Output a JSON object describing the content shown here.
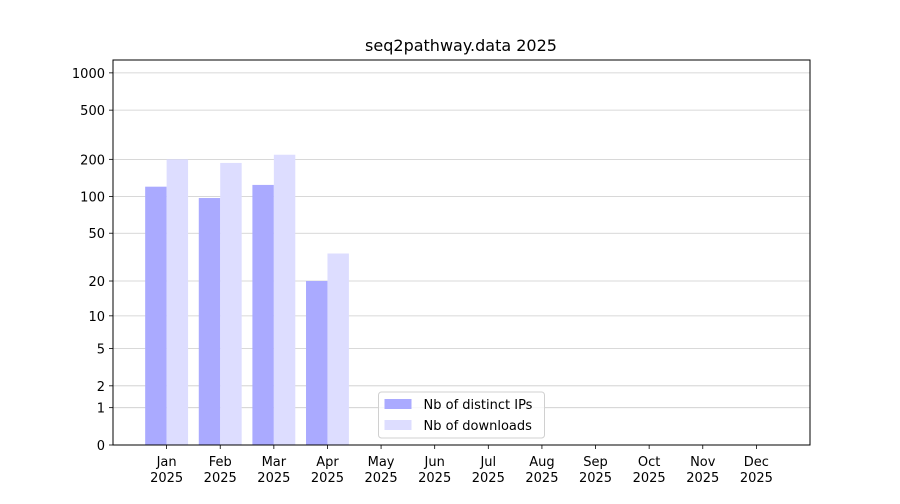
{
  "chart_data": {
    "type": "bar",
    "title": "seq2pathway.data 2025",
    "categories": [
      "Jan\n2025",
      "Feb\n2025",
      "Mar\n2025",
      "Apr\n2025",
      "May\n2025",
      "Jun\n2025",
      "Jul\n2025",
      "Aug\n2025",
      "Sep\n2025",
      "Oct\n2025",
      "Nov\n2025",
      "Dec\n2025"
    ],
    "series": [
      {
        "name": "Nb of distinct IPs",
        "color": "#aaaaff",
        "values": [
          120,
          97,
          124,
          20,
          null,
          null,
          null,
          null,
          null,
          null,
          null,
          null
        ]
      },
      {
        "name": "Nb of downloads",
        "color": "#ddddff",
        "values": [
          200,
          187,
          218,
          34,
          null,
          null,
          null,
          null,
          null,
          null,
          null,
          null
        ]
      }
    ],
    "yscale": "log1p",
    "ylim": [
      0,
      1270
    ],
    "yticks": [
      0,
      1,
      2,
      5,
      10,
      20,
      50,
      100,
      200,
      500,
      1000
    ],
    "grid": true,
    "legend": "lower center"
  }
}
